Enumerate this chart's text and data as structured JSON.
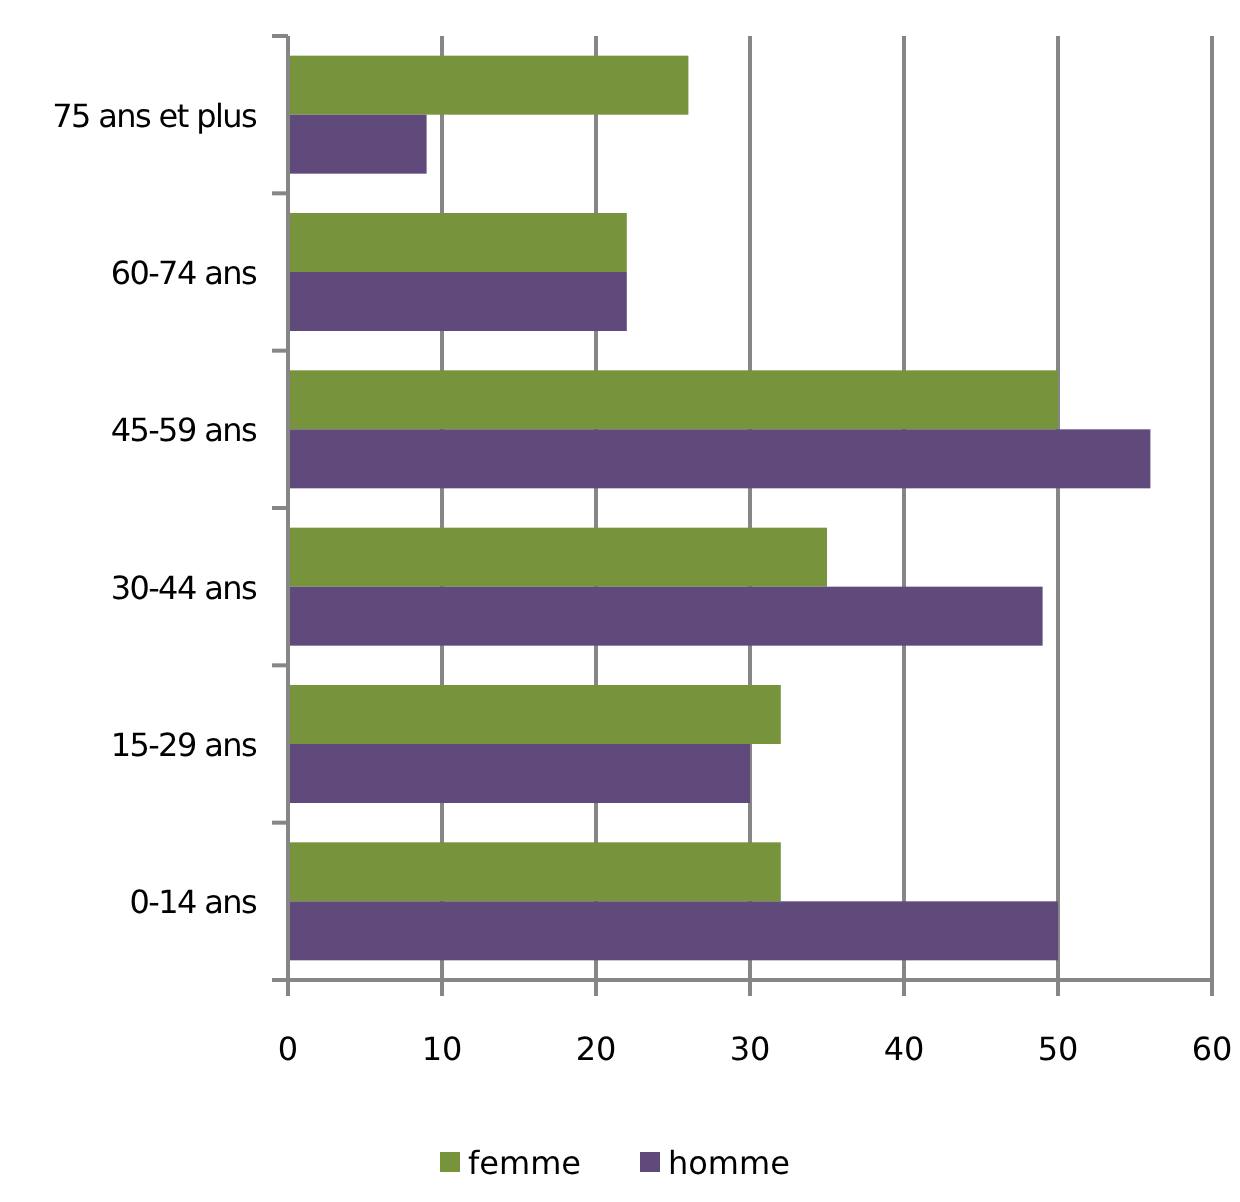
{
  "chart_data": {
    "type": "bar",
    "orientation": "horizontal",
    "categories": [
      "75 ans et plus",
      "60-74 ans",
      "45-59 ans",
      "30-44 ans",
      "15-29 ans",
      "0-14 ans"
    ],
    "series": [
      {
        "name": "femme",
        "color": "#77933c",
        "values": [
          26,
          22,
          50,
          35,
          32,
          32
        ]
      },
      {
        "name": "homme",
        "color": "#604a7b",
        "values": [
          9,
          22,
          56,
          49,
          30,
          50
        ]
      }
    ],
    "xlim": [
      0,
      60
    ],
    "xticks": [
      0,
      10,
      20,
      30,
      40,
      50,
      60
    ],
    "grid": "x",
    "legend": "bottom"
  }
}
